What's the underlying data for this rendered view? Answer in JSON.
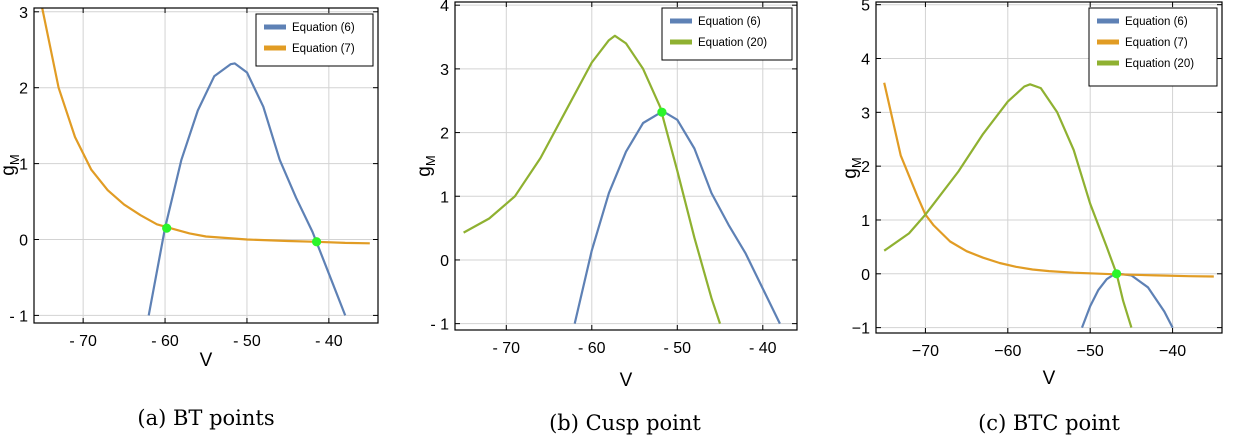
{
  "chart_data": [
    {
      "type": "line",
      "xlabel": "V",
      "ylabel": "g",
      "ylabel_sub": "M",
      "caption": "(a) BT points",
      "xlim": [
        -76,
        -34
      ],
      "ylim": [
        -1.1,
        3.05
      ],
      "xticks": [
        -70,
        -60,
        -50,
        -40
      ],
      "xtick_labels": [
        "- 70",
        "- 60",
        "- 50",
        "- 40"
      ],
      "yticks": [
        -1,
        0,
        1,
        2,
        3
      ],
      "ytick_labels": [
        "- 1",
        "0",
        "1",
        "2",
        "3"
      ],
      "grid": true,
      "legend_position": "top-right",
      "series": [
        {
          "name": "Equation (6)",
          "color": "#5e81b5",
          "x": [
            -62,
            -60,
            -58,
            -56,
            -54,
            -52,
            -51.5,
            -50,
            -48,
            -46,
            -44,
            -42,
            -40,
            -38
          ],
          "y": [
            -1.0,
            0.15,
            1.05,
            1.7,
            2.15,
            2.31,
            2.32,
            2.2,
            1.75,
            1.05,
            0.55,
            0.1,
            -0.45,
            -1.0
          ]
        },
        {
          "name": "Equation (7)",
          "color": "#e19c24",
          "x": [
            -75,
            -73,
            -71,
            -69,
            -67,
            -65,
            -63,
            -61,
            -59,
            -57,
            -55,
            -50,
            -45,
            -41.5,
            -38,
            -35
          ],
          "y": [
            3.05,
            2.0,
            1.35,
            0.92,
            0.65,
            0.46,
            0.32,
            0.2,
            0.14,
            0.08,
            0.04,
            0.0,
            -0.02,
            -0.03,
            -0.045,
            -0.05
          ]
        }
      ],
      "markers": [
        {
          "x": -59.8,
          "y": 0.15,
          "color": "#2bf52b"
        },
        {
          "x": -41.5,
          "y": -0.03,
          "color": "#2bf52b"
        }
      ]
    },
    {
      "type": "line",
      "xlabel": "V",
      "ylabel": "g",
      "ylabel_sub": "M",
      "caption": "(b) Cusp point",
      "xlim": [
        -76,
        -36
      ],
      "ylim": [
        -1.1,
        4.05
      ],
      "xticks": [
        -70,
        -60,
        -50,
        -40
      ],
      "xtick_labels": [
        "- 70",
        "- 60",
        "- 50",
        "- 40"
      ],
      "yticks": [
        -1,
        0,
        1,
        2,
        3,
        4
      ],
      "ytick_labels": [
        "- 1",
        "0",
        "1",
        "2",
        "3",
        "4"
      ],
      "grid": true,
      "legend_position": "top-right",
      "series": [
        {
          "name": "Equation (6)",
          "color": "#5e81b5",
          "x": [
            -62,
            -60,
            -58,
            -56,
            -54,
            -52,
            -51.5,
            -50,
            -48,
            -46,
            -44,
            -42,
            -40,
            -38
          ],
          "y": [
            -1.0,
            0.15,
            1.05,
            1.7,
            2.15,
            2.31,
            2.32,
            2.2,
            1.75,
            1.05,
            0.55,
            0.1,
            -0.45,
            -1.0
          ]
        },
        {
          "name": "Equation (20)",
          "color": "#8fb131",
          "x": [
            -75,
            -72,
            -69,
            -66,
            -63,
            -60,
            -58,
            -57.3,
            -56,
            -54,
            -52,
            -50,
            -48,
            -46,
            -45
          ],
          "y": [
            0.43,
            0.65,
            1.0,
            1.6,
            2.35,
            3.1,
            3.45,
            3.52,
            3.4,
            3.0,
            2.4,
            1.4,
            0.35,
            -0.6,
            -1.0
          ]
        }
      ],
      "markers": [
        {
          "x": -51.8,
          "y": 2.32,
          "color": "#2bf52b"
        }
      ]
    },
    {
      "type": "line",
      "xlabel": "V",
      "ylabel": "g",
      "ylabel_sub": "M",
      "caption": "(c) BTC point",
      "xlim": [
        -76,
        -34
      ],
      "ylim": [
        -1.1,
        5.05
      ],
      "xticks": [
        -70,
        -60,
        -50,
        -40
      ],
      "xtick_labels": [
        "−70",
        "−60",
        "−50",
        "−40"
      ],
      "yticks": [
        -1,
        0,
        1,
        2,
        3,
        4,
        5
      ],
      "ytick_labels": [
        "−1",
        "0",
        "1",
        "2",
        "3",
        "4",
        "5"
      ],
      "grid": true,
      "legend_position": "top-right",
      "series": [
        {
          "name": "Equation (6)",
          "color": "#5e81b5",
          "x": [
            -51,
            -50,
            -49,
            -48,
            -47,
            -46.5,
            -45,
            -43,
            -41,
            -40
          ],
          "y": [
            -1.0,
            -0.6,
            -0.3,
            -0.1,
            0.0,
            0.0,
            -0.03,
            -0.25,
            -0.7,
            -1.0
          ]
        },
        {
          "name": "Equation (7)",
          "color": "#e19c24",
          "x": [
            -75,
            -73,
            -71,
            -70,
            -69,
            -67,
            -65,
            -63,
            -61,
            -59,
            -57,
            -55,
            -52,
            -47,
            -42,
            -38,
            -35
          ],
          "y": [
            3.55,
            2.2,
            1.45,
            1.1,
            0.9,
            0.6,
            0.42,
            0.3,
            0.2,
            0.13,
            0.08,
            0.05,
            0.02,
            -0.01,
            -0.03,
            -0.045,
            -0.05
          ]
        },
        {
          "name": "Equation (20)",
          "color": "#8fb131",
          "x": [
            -75,
            -72,
            -70,
            -69,
            -66,
            -63,
            -60,
            -58,
            -57.3,
            -56,
            -54,
            -52,
            -50,
            -48,
            -46.8,
            -46,
            -45
          ],
          "y": [
            0.43,
            0.75,
            1.1,
            1.3,
            1.9,
            2.6,
            3.2,
            3.48,
            3.52,
            3.45,
            3.0,
            2.3,
            1.3,
            0.5,
            0.0,
            -0.5,
            -1.0
          ]
        }
      ],
      "markers": [
        {
          "x": -46.8,
          "y": 0.0,
          "color": "#2bf52b"
        }
      ]
    }
  ]
}
